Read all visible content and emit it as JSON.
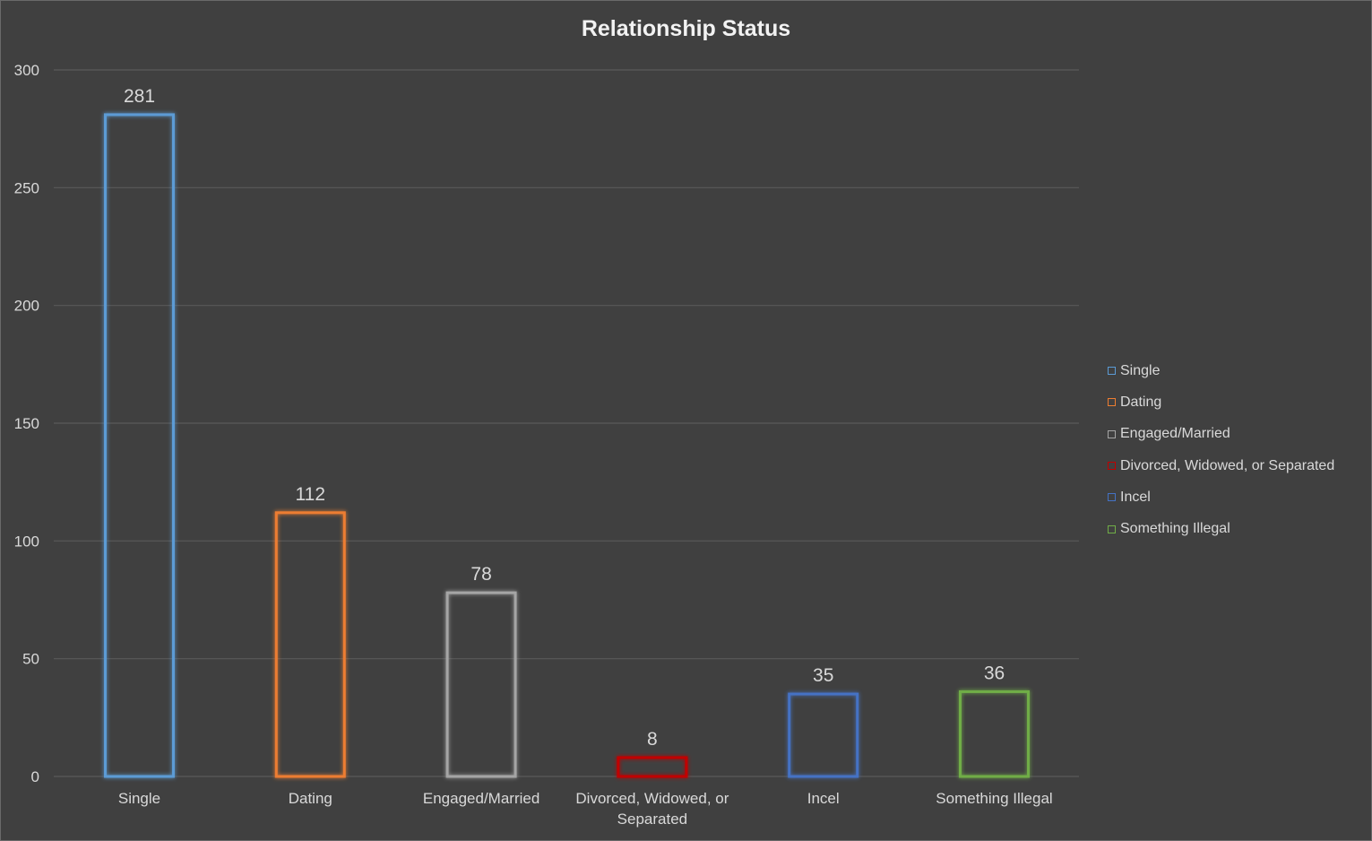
{
  "chart_data": {
    "type": "bar",
    "title": "Relationship Status",
    "xlabel": "",
    "ylabel": "",
    "ylim": [
      0,
      300
    ],
    "yticks": [
      0,
      50,
      100,
      150,
      200,
      250,
      300
    ],
    "grid": true,
    "legend_position": "right",
    "categories": [
      "Single",
      "Dating",
      "Engaged/Married",
      "Divorced, Widowed, or Separated",
      "Incel",
      "Something Illegal"
    ],
    "category_label_lines": [
      [
        "Single"
      ],
      [
        "Dating"
      ],
      [
        "Engaged/Married"
      ],
      [
        "Divorced, Widowed, or",
        "Separated"
      ],
      [
        "Incel"
      ],
      [
        "Something Illegal"
      ]
    ],
    "values": [
      281,
      112,
      78,
      8,
      35,
      36
    ],
    "colors": [
      "#5b9bd5",
      "#ed7d31",
      "#a5a5a5",
      "#c00000",
      "#4472c4",
      "#70ad47"
    ],
    "bar_style": "outline-glow"
  },
  "theme": {
    "background": "#404040",
    "gridline": "#595959",
    "text": "#d9d9d9"
  }
}
